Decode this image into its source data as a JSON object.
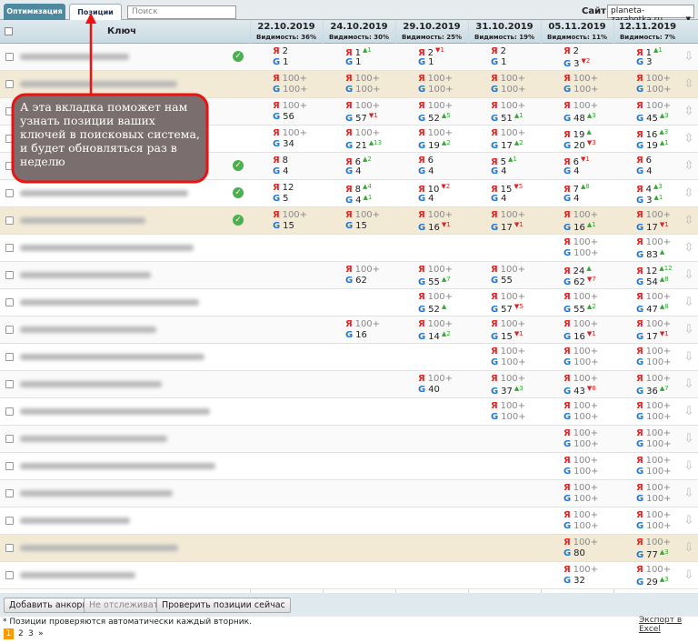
{
  "tabs": [
    "Оптимизация",
    "Позиции"
  ],
  "search_placeholder": "Поиск",
  "site_label": "Сайт:",
  "site_value": "planeta-zarabotka.ru",
  "key_header": "Ключ",
  "engine_labels": [
    "Я",
    "G"
  ],
  "columns": [
    {
      "date": "22.10.2019",
      "visibility": "Видимость: 36%"
    },
    {
      "date": "24.10.2019",
      "visibility": "Видимость: 30%"
    },
    {
      "date": "29.10.2019",
      "visibility": "Видимость: 25%"
    },
    {
      "date": "31.10.2019",
      "visibility": "Видимость: 19%"
    },
    {
      "date": "05.11.2019",
      "visibility": "Видимость: 11%"
    },
    {
      "date": "12.11.2019",
      "visibility": "Видимость: 7%"
    }
  ],
  "rows": [
    {
      "check": true,
      "highlight": false,
      "cells": [
        {
          "y": "2",
          "g": "1"
        },
        {
          "y": "1",
          "yd": "▲1",
          "g": "1"
        },
        {
          "y": "2",
          "yd": "▼1",
          "g": "1"
        },
        {
          "y": "2",
          "g": "1"
        },
        {
          "y": "2",
          "g": "3",
          "gd": "▼2"
        },
        {
          "y": "1",
          "yd": "▲1",
          "g": "3"
        }
      ]
    },
    {
      "check": false,
      "highlight": true,
      "cells": [
        {
          "y": "100+",
          "g": "100+"
        },
        {
          "y": "100+",
          "g": "100+"
        },
        {
          "y": "100+",
          "g": "100+"
        },
        {
          "y": "100+",
          "g": "100+"
        },
        {
          "y": "100+",
          "g": "100+"
        },
        {
          "y": "100+",
          "g": "100+"
        }
      ]
    },
    {
      "check": false,
      "highlight": false,
      "cells": [
        {
          "y": "100+",
          "g": "56"
        },
        {
          "y": "100+",
          "g": "57",
          "gd": "▼1"
        },
        {
          "y": "100+",
          "g": "52",
          "gd": "▲5"
        },
        {
          "y": "100+",
          "g": "51",
          "gd": "▲1"
        },
        {
          "y": "100+",
          "g": "48",
          "gd": "▲3"
        },
        {
          "y": "100+",
          "g": "45",
          "gd": "▲3"
        }
      ]
    },
    {
      "check": false,
      "highlight": false,
      "cells": [
        {
          "y": "100+",
          "g": "34"
        },
        {
          "y": "100+",
          "g": "21",
          "gd": "▲13"
        },
        {
          "y": "100+",
          "g": "19",
          "gd": "▲2"
        },
        {
          "y": "100+",
          "g": "17",
          "gd": "▲2"
        },
        {
          "y": "19",
          "yd": "▲",
          "g": "20",
          "gd": "▼3"
        },
        {
          "y": "16",
          "yd": "▲3",
          "g": "19",
          "gd": "▲1"
        }
      ]
    },
    {
      "check": true,
      "highlight": false,
      "cells": [
        {
          "y": "8",
          "g": "4"
        },
        {
          "y": "6",
          "yd": "▲2",
          "g": "4"
        },
        {
          "y": "6",
          "g": "4"
        },
        {
          "y": "5",
          "yd": "▲1",
          "g": "4"
        },
        {
          "y": "6",
          "yd": "▼1",
          "g": "4"
        },
        {
          "y": "6",
          "g": "4"
        }
      ]
    },
    {
      "check": true,
      "highlight": false,
      "cells": [
        {
          "y": "12",
          "g": "5"
        },
        {
          "y": "8",
          "yd": "▲4",
          "g": "4",
          "gd": "▲1"
        },
        {
          "y": "10",
          "yd": "▼2",
          "g": "4"
        },
        {
          "y": "15",
          "yd": "▼5",
          "g": "4"
        },
        {
          "y": "7",
          "yd": "▲8",
          "g": "4"
        },
        {
          "y": "4",
          "yd": "▲3",
          "g": "3",
          "gd": "▲1"
        }
      ]
    },
    {
      "check": true,
      "highlight": true,
      "cells": [
        {
          "y": "100+",
          "g": "15"
        },
        {
          "y": "100+",
          "g": "15"
        },
        {
          "y": "100+",
          "g": "16",
          "gd": "▼1"
        },
        {
          "y": "100+",
          "g": "17",
          "gd": "▼1"
        },
        {
          "y": "100+",
          "g": "16",
          "gd": "▲1"
        },
        {
          "y": "100+",
          "g": "17",
          "gd": "▼1"
        }
      ]
    },
    {
      "check": false,
      "highlight": false,
      "cells": [
        null,
        null,
        null,
        null,
        {
          "y": "100+",
          "g": "100+"
        },
        {
          "y": "100+",
          "g": "83",
          "gd": "▲"
        }
      ]
    },
    {
      "check": false,
      "highlight": false,
      "cells": [
        null,
        {
          "y": "100+",
          "g": "62"
        },
        {
          "y": "100+",
          "g": "55",
          "gd": "▲7"
        },
        {
          "y": "100+",
          "g": "55"
        },
        {
          "y": "24",
          "yd": "▲",
          "g": "62",
          "gd": "▼7"
        },
        {
          "y": "12",
          "yd": "▲12",
          "g": "54",
          "gd": "▲8"
        }
      ]
    },
    {
      "check": false,
      "highlight": false,
      "cells": [
        null,
        null,
        {
          "y": "100+",
          "g": "52",
          "gd": "▲"
        },
        {
          "y": "100+",
          "g": "57",
          "gd": "▼5"
        },
        {
          "y": "100+",
          "g": "55",
          "gd": "▲2"
        },
        {
          "y": "100+",
          "g": "47",
          "gd": "▲8"
        }
      ]
    },
    {
      "check": false,
      "highlight": false,
      "cells": [
        null,
        {
          "y": "100+",
          "g": "16"
        },
        {
          "y": "100+",
          "g": "14",
          "gd": "▲2"
        },
        {
          "y": "100+",
          "g": "15",
          "gd": "▼1"
        },
        {
          "y": "100+",
          "g": "16",
          "gd": "▼1"
        },
        {
          "y": "100+",
          "g": "17",
          "gd": "▼1"
        }
      ]
    },
    {
      "check": false,
      "highlight": false,
      "cells": [
        null,
        null,
        null,
        {
          "y": "100+",
          "g": "100+"
        },
        {
          "y": "100+",
          "g": "100+"
        },
        {
          "y": "100+",
          "g": "100+"
        }
      ]
    },
    {
      "check": false,
      "highlight": false,
      "cells": [
        null,
        null,
        {
          "y": "100+",
          "g": "40"
        },
        {
          "y": "100+",
          "g": "37",
          "gd": "▲3"
        },
        {
          "y": "100+",
          "g": "43",
          "gd": "▼6"
        },
        {
          "y": "100+",
          "g": "36",
          "gd": "▲7"
        }
      ]
    },
    {
      "check": false,
      "highlight": false,
      "cells": [
        null,
        null,
        null,
        {
          "y": "100+",
          "g": "100+"
        },
        {
          "y": "100+",
          "g": "100+"
        },
        {
          "y": "100+",
          "g": "100+"
        }
      ]
    },
    {
      "check": false,
      "highlight": false,
      "cells": [
        null,
        null,
        null,
        null,
        {
          "y": "100+",
          "g": "100+"
        },
        {
          "y": "100+",
          "g": "100+"
        }
      ]
    },
    {
      "check": false,
      "highlight": false,
      "cells": [
        null,
        null,
        null,
        null,
        {
          "y": "100+",
          "g": "100+"
        },
        {
          "y": "100+",
          "g": "100+"
        }
      ]
    },
    {
      "check": false,
      "highlight": false,
      "cells": [
        null,
        null,
        null,
        null,
        {
          "y": "100+",
          "g": "100+"
        },
        {
          "y": "100+",
          "g": "100+"
        }
      ]
    },
    {
      "check": false,
      "highlight": false,
      "cells": [
        null,
        null,
        null,
        null,
        {
          "y": "100+",
          "g": "100+"
        },
        {
          "y": "100+",
          "g": "100+"
        }
      ]
    },
    {
      "check": false,
      "highlight": true,
      "cells": [
        null,
        null,
        null,
        null,
        {
          "y": "100+",
          "g": "80"
        },
        {
          "y": "100+",
          "g": "77",
          "gd": "▲3"
        }
      ]
    },
    {
      "check": false,
      "highlight": false,
      "cells": [
        null,
        null,
        null,
        null,
        {
          "y": "100+",
          "g": "32"
        },
        {
          "y": "100+",
          "g": "29",
          "gd": "▲3"
        }
      ]
    }
  ],
  "buttons": [
    "Добавить анкоры",
    "Не отслеживать",
    "Проверить позиции сейчас"
  ],
  "note": "* Позиции проверяются автоматически каждый вторник.",
  "export": "Экспорт в Excel",
  "pages": [
    "1",
    "2",
    "3",
    "»"
  ],
  "callout": "А эта вкладка поможет нам узнать позиции ваших ключей в поисковых система, и будет обновляться раз в неделю"
}
